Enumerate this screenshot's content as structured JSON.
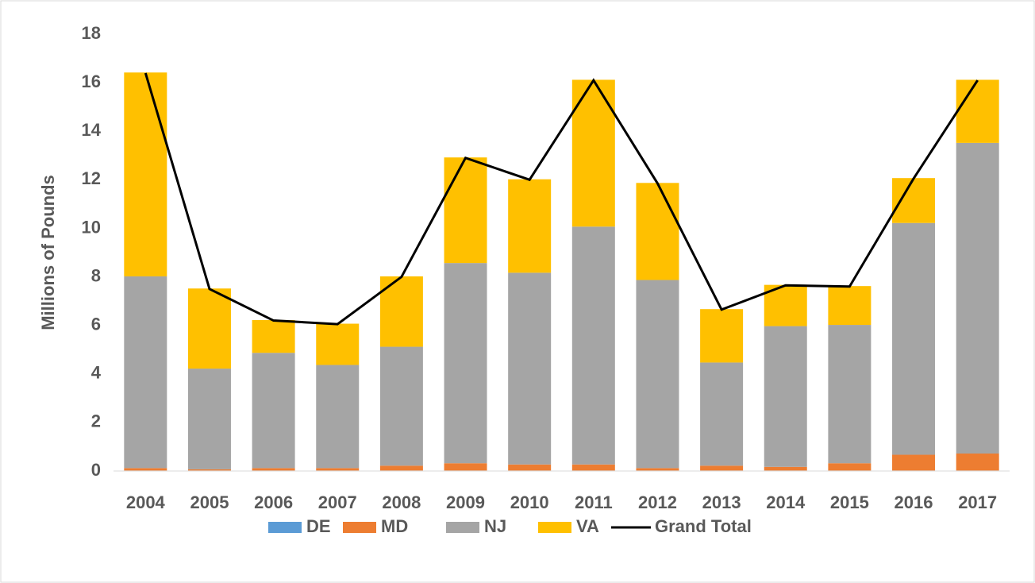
{
  "chart_data": {
    "type": "bar",
    "stacked": true,
    "y_label": "Millions of Pounds",
    "categories": [
      "2004",
      "2005",
      "2006",
      "2007",
      "2008",
      "2009",
      "2010",
      "2011",
      "2012",
      "2013",
      "2014",
      "2015",
      "2016",
      "2017"
    ],
    "series": [
      {
        "name": "DE",
        "color": "#5b9bd5",
        "values": [
          0.02,
          0.02,
          0.02,
          0.02,
          0.02,
          0.02,
          0.02,
          0.02,
          0.02,
          0.02,
          0.02,
          0.02,
          0.02,
          0.02
        ]
      },
      {
        "name": "MD",
        "color": "#ed7d31",
        "values": [
          0.1,
          0.05,
          0.1,
          0.1,
          0.2,
          0.3,
          0.25,
          0.25,
          0.1,
          0.2,
          0.15,
          0.3,
          0.65,
          0.7
        ]
      },
      {
        "name": "NJ",
        "color": "#a5a5a5",
        "values": [
          7.9,
          4.15,
          4.75,
          4.25,
          4.9,
          8.25,
          7.9,
          9.8,
          7.75,
          4.25,
          5.8,
          5.7,
          9.55,
          12.8
        ]
      },
      {
        "name": "VA",
        "color": "#ffc000",
        "values": [
          8.4,
          3.3,
          1.35,
          1.7,
          2.9,
          4.35,
          3.85,
          6.05,
          4.0,
          2.2,
          1.7,
          1.6,
          1.85,
          2.6
        ]
      },
      {
        "name": "Grand Total",
        "type": "line",
        "color": "#000000",
        "values": [
          16.4,
          7.5,
          6.2,
          6.05,
          8.0,
          12.9,
          12.0,
          16.1,
          11.85,
          6.65,
          7.65,
          7.6,
          12.05,
          16.1
        ]
      }
    ],
    "ylim": [
      0,
      18
    ],
    "yticks": [
      0,
      2,
      4,
      6,
      8,
      10,
      12,
      14,
      16,
      18
    ],
    "grid": false,
    "legend": "bottom"
  }
}
